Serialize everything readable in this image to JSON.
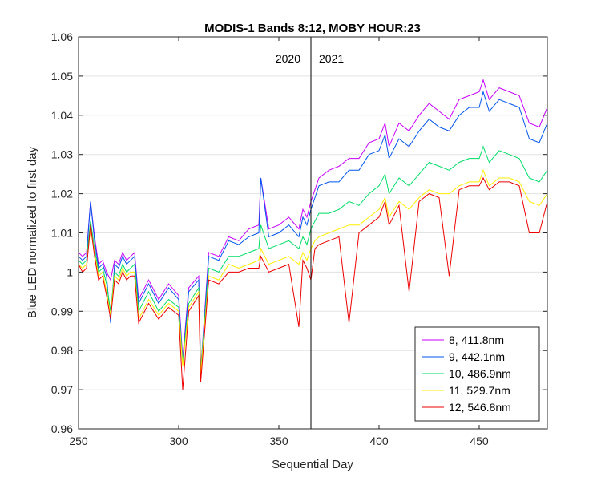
{
  "chart_data": {
    "type": "line",
    "title": "MODIS-1 Bands 8:12, MOBY HOUR:23",
    "xlabel": "Sequential Day",
    "ylabel": "Blue LED normalized to first day",
    "xlim": [
      250,
      484
    ],
    "ylim": [
      0.96,
      1.06
    ],
    "xticks": [
      250,
      300,
      350,
      400,
      450
    ],
    "yticks": [
      0.96,
      0.97,
      0.98,
      0.99,
      1,
      1.01,
      1.02,
      1.03,
      1.04,
      1.05,
      1.06
    ],
    "ytick_labels": [
      "0.96",
      "0.97",
      "0.98",
      "0.99",
      "1",
      "1.01",
      "1.02",
      "1.03",
      "1.04",
      "1.05",
      "1.06"
    ],
    "grid": "horizontal",
    "legend_position": "bottom-right",
    "vline": {
      "x": 366,
      "left_label": "2020",
      "right_label": "2021"
    },
    "series": [
      {
        "name": "8, 411.8nm",
        "color": "#c800ff",
        "x": [
          250,
          252,
          254,
          256,
          258,
          260,
          262,
          264,
          266,
          268,
          270,
          272,
          274,
          276,
          278,
          280,
          285,
          290,
          295,
          300,
          302,
          305,
          310,
          311,
          315,
          320,
          325,
          330,
          335,
          340,
          341,
          345,
          350,
          355,
          360,
          362,
          364,
          366,
          368,
          370,
          375,
          380,
          385,
          390,
          395,
          400,
          403,
          405,
          410,
          415,
          420,
          425,
          430,
          435,
          440,
          445,
          450,
          452,
          455,
          460,
          465,
          470,
          475,
          480,
          484
        ],
        "values": [
          1.005,
          1.004,
          1.005,
          1.018,
          1.009,
          1.002,
          1.003,
          1.0,
          0.998,
          1.003,
          1.002,
          1.005,
          1.003,
          1.004,
          1.005,
          0.993,
          0.998,
          0.993,
          0.997,
          0.994,
          0.978,
          0.996,
          0.999,
          0.975,
          1.005,
          1.004,
          1.009,
          1.008,
          1.011,
          1.012,
          1.024,
          1.011,
          1.012,
          1.014,
          1.011,
          1.016,
          1.014,
          1.018,
          1.021,
          1.024,
          1.026,
          1.027,
          1.029,
          1.029,
          1.033,
          1.034,
          1.038,
          1.032,
          1.038,
          1.036,
          1.04,
          1.043,
          1.041,
          1.039,
          1.044,
          1.045,
          1.046,
          1.049,
          1.044,
          1.047,
          1.046,
          1.045,
          1.038,
          1.037,
          1.042
        ]
      },
      {
        "name": "9, 442.1nm",
        "color": "#0055ee",
        "x": [
          250,
          252,
          254,
          256,
          258,
          260,
          262,
          264,
          266,
          268,
          270,
          272,
          274,
          276,
          278,
          280,
          285,
          290,
          295,
          300,
          302,
          305,
          310,
          311,
          315,
          320,
          325,
          330,
          335,
          340,
          341,
          345,
          350,
          355,
          360,
          362,
          364,
          366,
          368,
          370,
          375,
          380,
          385,
          390,
          395,
          400,
          403,
          405,
          410,
          415,
          420,
          425,
          430,
          435,
          440,
          445,
          450,
          452,
          455,
          460,
          465,
          470,
          475,
          480,
          484
        ],
        "values": [
          1.004,
          1.003,
          1.004,
          1.018,
          1.008,
          1.001,
          1.002,
          0.999,
          0.987,
          1.002,
          1.001,
          1.004,
          1.002,
          1.003,
          1.004,
          0.992,
          0.997,
          0.992,
          0.996,
          0.993,
          0.977,
          0.995,
          0.998,
          0.974,
          1.004,
          1.003,
          1.008,
          1.007,
          1.009,
          1.01,
          1.024,
          1.009,
          1.01,
          1.012,
          1.009,
          1.014,
          1.012,
          1.016,
          1.019,
          1.022,
          1.023,
          1.023,
          1.026,
          1.026,
          1.03,
          1.031,
          1.035,
          1.029,
          1.034,
          1.032,
          1.036,
          1.039,
          1.037,
          1.036,
          1.04,
          1.042,
          1.042,
          1.046,
          1.041,
          1.044,
          1.043,
          1.042,
          1.034,
          1.033,
          1.038
        ]
      },
      {
        "name": "10, 486.9nm",
        "color": "#00dd66",
        "x": [
          250,
          252,
          254,
          256,
          258,
          260,
          262,
          264,
          266,
          268,
          270,
          272,
          274,
          276,
          278,
          280,
          285,
          290,
          295,
          300,
          302,
          305,
          310,
          311,
          315,
          320,
          325,
          330,
          335,
          340,
          341,
          345,
          350,
          355,
          360,
          362,
          364,
          366,
          368,
          370,
          375,
          380,
          385,
          390,
          395,
          400,
          403,
          405,
          410,
          415,
          420,
          425,
          430,
          435,
          440,
          445,
          450,
          452,
          455,
          460,
          465,
          470,
          475,
          480,
          484
        ],
        "values": [
          1.003,
          1.002,
          1.003,
          1.013,
          1.006,
          1.0,
          1.001,
          0.997,
          0.99,
          1.0,
          0.999,
          1.002,
          1.0,
          1.001,
          1.002,
          0.99,
          0.995,
          0.99,
          0.993,
          0.991,
          0.977,
          0.992,
          0.996,
          0.975,
          1.001,
          1.0,
          1.004,
          1.004,
          1.005,
          1.006,
          1.012,
          1.006,
          1.007,
          1.008,
          1.006,
          1.009,
          1.007,
          1.011,
          1.013,
          1.015,
          1.015,
          1.016,
          1.018,
          1.017,
          1.02,
          1.022,
          1.025,
          1.02,
          1.024,
          1.022,
          1.025,
          1.028,
          1.027,
          1.026,
          1.028,
          1.029,
          1.029,
          1.032,
          1.028,
          1.031,
          1.03,
          1.029,
          1.024,
          1.023,
          1.026
        ]
      },
      {
        "name": "11, 529.7nm",
        "color": "#ffee00",
        "x": [
          250,
          252,
          254,
          256,
          258,
          260,
          262,
          264,
          266,
          268,
          270,
          272,
          274,
          276,
          278,
          280,
          285,
          290,
          295,
          300,
          302,
          305,
          310,
          311,
          315,
          320,
          325,
          330,
          335,
          340,
          341,
          345,
          350,
          355,
          360,
          362,
          364,
          366,
          368,
          370,
          375,
          380,
          385,
          390,
          395,
          400,
          403,
          405,
          410,
          415,
          420,
          425,
          430,
          435,
          440,
          445,
          450,
          452,
          455,
          460,
          465,
          470,
          475,
          480,
          484
        ],
        "values": [
          1.002,
          1.001,
          1.002,
          1.011,
          1.005,
          0.999,
          1.0,
          0.995,
          0.989,
          0.999,
          0.998,
          1.001,
          0.999,
          1.0,
          1.0,
          0.988,
          0.993,
          0.989,
          0.992,
          0.99,
          0.976,
          0.991,
          0.995,
          0.974,
          0.999,
          0.998,
          1.002,
          1.001,
          1.002,
          1.003,
          1.006,
          1.002,
          1.003,
          1.004,
          1.002,
          1.005,
          1.003,
          1.006,
          1.008,
          1.009,
          1.01,
          1.011,
          1.012,
          1.012,
          1.014,
          1.016,
          1.019,
          1.014,
          1.018,
          1.016,
          1.019,
          1.021,
          1.02,
          1.02,
          1.022,
          1.023,
          1.023,
          1.026,
          1.022,
          1.024,
          1.024,
          1.023,
          1.018,
          1.017,
          1.02
        ]
      },
      {
        "name": "12, 546.8nm",
        "color": "#ee0000",
        "x": [
          250,
          252,
          254,
          256,
          258,
          260,
          262,
          264,
          266,
          268,
          270,
          272,
          274,
          276,
          278,
          280,
          285,
          290,
          295,
          300,
          302,
          305,
          310,
          311,
          315,
          320,
          325,
          330,
          335,
          340,
          341,
          345,
          350,
          355,
          360,
          362,
          364,
          366,
          368,
          370,
          375,
          380,
          385,
          390,
          395,
          400,
          403,
          405,
          410,
          415,
          420,
          425,
          430,
          435,
          440,
          445,
          450,
          452,
          455,
          460,
          465,
          470,
          475,
          480,
          484
        ],
        "values": [
          1.002,
          1.0,
          1.001,
          1.012,
          1.004,
          0.998,
          0.999,
          0.994,
          0.988,
          0.998,
          0.997,
          1.0,
          0.998,
          0.999,
          0.999,
          0.987,
          0.992,
          0.988,
          0.991,
          0.989,
          0.97,
          0.99,
          0.994,
          0.972,
          0.998,
          0.997,
          1.0,
          1.0,
          1.001,
          1.001,
          1.004,
          1.0,
          1.001,
          1.002,
          0.986,
          1.003,
          1.001,
          0.998,
          1.006,
          1.007,
          1.008,
          1.009,
          0.987,
          1.01,
          1.012,
          1.014,
          1.018,
          1.012,
          1.017,
          0.995,
          1.018,
          1.02,
          1.019,
          0.999,
          1.021,
          1.022,
          1.022,
          1.024,
          1.021,
          1.023,
          1.023,
          1.022,
          1.01,
          1.01,
          1.018
        ]
      }
    ]
  }
}
